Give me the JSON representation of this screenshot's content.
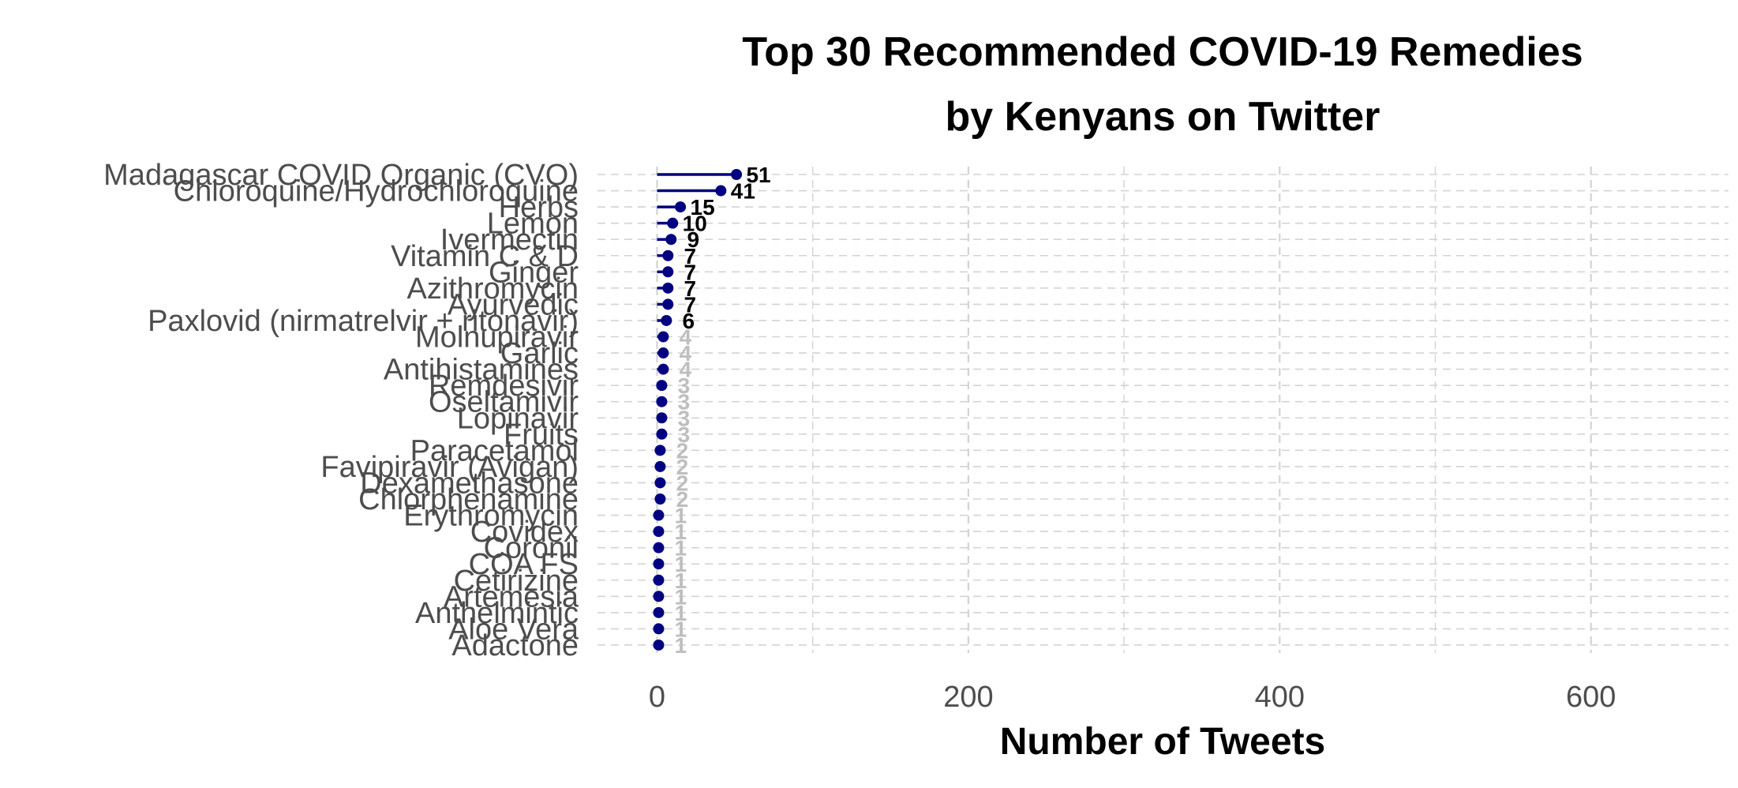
{
  "chart_data": {
    "type": "bar",
    "orientation": "horizontal",
    "mark": "lollipop",
    "title": [
      "Top 30 Recommended COVID-19 Remedies",
      "by Kenyans on Twitter"
    ],
    "xlabel": "Number of Tweets",
    "ylabel": "",
    "xlim": [
      -40,
      690
    ],
    "x_ticks": [
      0,
      200,
      400,
      600
    ],
    "grid": "major and minor vertical dashed lines, horizontal dashed lines per category",
    "legend": "none",
    "categories": [
      "Madagascar COVID Organic (CVO)",
      "Chloroquine/Hydrochloroquine",
      "Herbs",
      "Lemon",
      "Ivermectin",
      "Vitamin C & D",
      "Ginger",
      "Azithromycin",
      "Ayurvedic",
      "Paxlovid (nirmatrelvir + ritonavir)",
      "Molnupiravir",
      "Garlic",
      "Antihistamines",
      "Remdesivir",
      "Oseltamivir",
      "Lopinavir",
      "Fruits",
      "Paracetamol",
      "Favipiravir (Avigan)",
      "Dexamethasone",
      "Chlorphenamine",
      "Erythromycin",
      "Covidex",
      "Coronil",
      "COA FS",
      "Cetirizine",
      "Artemesia",
      "Anthelmintic",
      "Aloe Vera",
      "Adactone"
    ],
    "values": [
      51,
      41,
      15,
      10,
      9,
      7,
      7,
      7,
      7,
      6,
      4,
      4,
      4,
      3,
      3,
      3,
      3,
      2,
      2,
      2,
      2,
      1,
      1,
      1,
      1,
      1,
      1,
      1,
      1,
      1
    ],
    "colors": {
      "segment": "#000080",
      "point": "#000080",
      "label_high": "#000000",
      "label_low": "#bebebe",
      "grid": "#d3d3d3"
    }
  }
}
